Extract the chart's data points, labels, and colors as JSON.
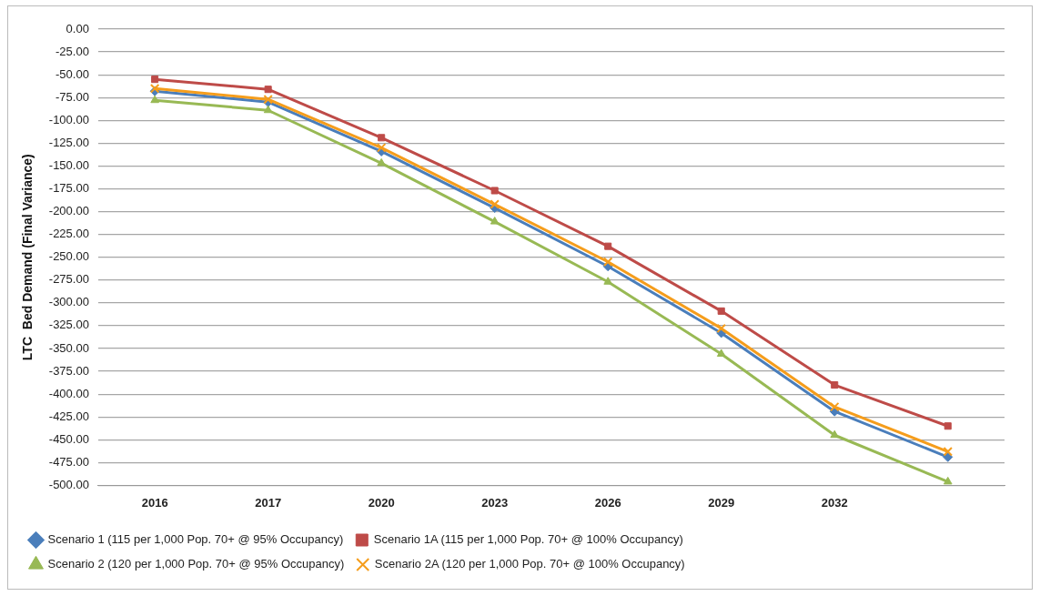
{
  "chart_data": {
    "type": "line",
    "ylabel": "LTC  Bed Demand (Final Variance)",
    "categories": [
      "2016",
      "2017",
      "2020",
      "2023",
      "2026",
      "2029",
      "2032",
      null
    ],
    "series": [
      {
        "name": "Scenario 1 (115 per 1,000 Pop. 70+ @ 95% Occupancy)",
        "color": "#4a7ebb",
        "marker": "diamond",
        "values": [
          -68,
          -80,
          -134,
          -196,
          -260,
          -333,
          -419,
          -469
        ]
      },
      {
        "name": "Scenario 1A (115 per 1,000 Pop. 70+ @ 100% Occupancy)",
        "color": "#be4b48",
        "marker": "square",
        "values": [
          -55,
          -66,
          -119,
          -177,
          -238,
          -309,
          -390,
          -435
        ]
      },
      {
        "name": "Scenario 2 (120 per 1,000 Pop. 70+ @ 95% Occupancy)",
        "color": "#98b954",
        "marker": "triangle",
        "values": [
          -78,
          -89,
          -147,
          -211,
          -277,
          -356,
          -445,
          -496
        ]
      },
      {
        "name": "Scenario 2A (120 per 1,000 Pop. 70+ @ 100% Occupancy)",
        "color": "#f59d1c",
        "marker": "cross",
        "values": [
          -65,
          -77,
          -130,
          -192,
          -255,
          -328,
          -414,
          -463
        ]
      }
    ],
    "ylim": [
      -500,
      0
    ],
    "yticks": [
      {
        "value": 0,
        "label": "0.00"
      },
      {
        "value": -25,
        "label": "-25.00"
      },
      {
        "value": -50,
        "label": "-50.00"
      },
      {
        "value": -75,
        "label": "-75.00"
      },
      {
        "value": -100,
        "label": "-100.00"
      },
      {
        "value": -125,
        "label": "-125.00"
      },
      {
        "value": -150,
        "label": "-150.00"
      },
      {
        "value": -175,
        "label": "-175.00"
      },
      {
        "value": -200,
        "label": "-200.00"
      },
      {
        "value": -225,
        "label": "-225.00"
      },
      {
        "value": -250,
        "label": "-250.00"
      },
      {
        "value": -275,
        "label": "-275.00"
      },
      {
        "value": -300,
        "label": "-300.00"
      },
      {
        "value": -325,
        "label": "-325.00"
      },
      {
        "value": -350,
        "label": "-350.00"
      },
      {
        "value": -375,
        "label": "-375.00"
      },
      {
        "value": -400,
        "label": "-400.00"
      },
      {
        "value": -425,
        "label": "-425.00"
      },
      {
        "value": -450,
        "label": "-450.00"
      },
      {
        "value": -475,
        "label": "-475.00"
      },
      {
        "value": -500,
        "label": "-500.00"
      }
    ],
    "grid": "y",
    "legend": "bottom",
    "line_style": "solid"
  }
}
